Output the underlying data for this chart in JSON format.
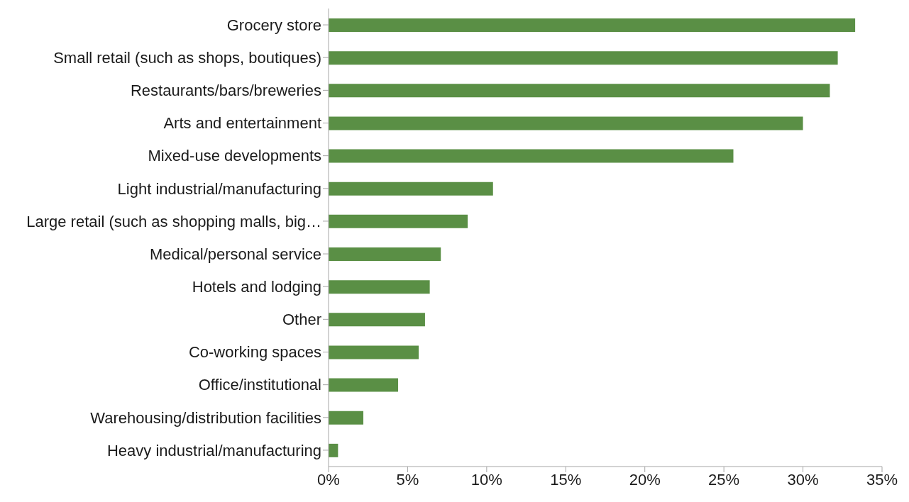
{
  "chart_data": {
    "type": "bar",
    "orientation": "horizontal",
    "categories": [
      "Grocery store",
      "Small retail (such as shops, boutiques)",
      "Restaurants/bars/breweries",
      "Arts and entertainment",
      "Mixed-use developments",
      "Light industrial/manufacturing",
      "Large retail (such as shopping malls, big…",
      "Medical/personal service",
      "Hotels and lodging",
      "Other",
      "Co-working spaces",
      "Office/institutional",
      "Warehousing/distribution facilities",
      "Heavy industrial/manufacturing"
    ],
    "values": [
      33.3,
      32.2,
      31.7,
      30.0,
      25.6,
      10.4,
      8.8,
      7.1,
      6.4,
      6.1,
      5.7,
      4.4,
      2.2,
      0.6
    ],
    "color": "#5a8f45",
    "xlim": [
      0,
      35
    ],
    "xticks": [
      {
        "value": 0,
        "label": "0%"
      },
      {
        "value": 5,
        "label": "5%"
      },
      {
        "value": 10,
        "label": "10%"
      },
      {
        "value": 15,
        "label": "15%"
      },
      {
        "value": 20,
        "label": "20%"
      },
      {
        "value": 25,
        "label": "25%"
      },
      {
        "value": 30,
        "label": "30%"
      },
      {
        "value": 35,
        "label": "35%"
      }
    ],
    "grid": false,
    "legend": false
  }
}
